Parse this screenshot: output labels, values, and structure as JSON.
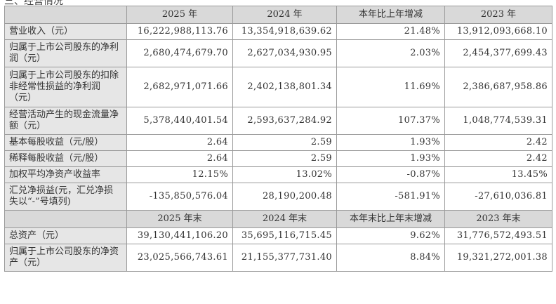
{
  "header_clip": "三、经营情况",
  "header1": [
    "",
    "2025 年",
    "2024 年",
    "本年比上年增减",
    "2023 年"
  ],
  "rows1": [
    {
      "label": "营业收入（元）",
      "values": [
        "16,222,988,113.76",
        "13,354,918,639.62",
        "21.48%",
        "13,912,093,668.10"
      ],
      "h": "r1"
    },
    {
      "label": "归属于上市公司股东的净利润（元）",
      "values": [
        "2,680,474,679.70",
        "2,627,034,930.95",
        "2.03%",
        "2,454,377,699.43"
      ],
      "h": "r2"
    },
    {
      "label": "归属于上市公司股东的扣除非经常性损益的净利润（元）",
      "values": [
        "2,682,971,071.66",
        "2,402,138,801.34",
        "11.69%",
        "2,386,687,958.86"
      ],
      "h": "r3"
    },
    {
      "label": "经营活动产生的现金流量净额（元）",
      "values": [
        "5,378,440,401.54",
        "2,593,637,284.92",
        "107.37%",
        "1,048,774,539.31"
      ],
      "h": "r2"
    },
    {
      "label": "基本每股收益（元/股）",
      "values": [
        "2.64",
        "2.59",
        "1.93%",
        "2.42"
      ],
      "h": "r1"
    },
    {
      "label": "稀释每股收益（元/股）",
      "values": [
        "2.64",
        "2.59",
        "1.93%",
        "2.42"
      ],
      "h": "r1"
    },
    {
      "label": "加权平均净资产收益率",
      "values": [
        "12.15%",
        "13.02%",
        "-0.87%",
        "13.45%"
      ],
      "h": "r1"
    },
    {
      "label": "汇兑净损益(元，汇兑净损失以“-”号填列)",
      "values": [
        "-135,850,576.04",
        "28,190,200.48",
        "-581.91%",
        "-27,610,036.81"
      ],
      "h": "r2"
    }
  ],
  "header2": [
    "",
    "2025 年末",
    "2024 年末",
    "本年末比上年末增减",
    "2023 年末"
  ],
  "rows2": [
    {
      "label": "总资产（元）",
      "values": [
        "39,130,441,106.20",
        "35,695,116,715.45",
        "9.62%",
        "31,776,572,493.51"
      ],
      "h": "r1"
    },
    {
      "label": "归属于上市公司股东的净资产（元）",
      "values": [
        "23,025,566,743.61",
        "21,155,377,731.40",
        "8.84%",
        "19,321,272,001.38"
      ],
      "h": "r2"
    }
  ]
}
